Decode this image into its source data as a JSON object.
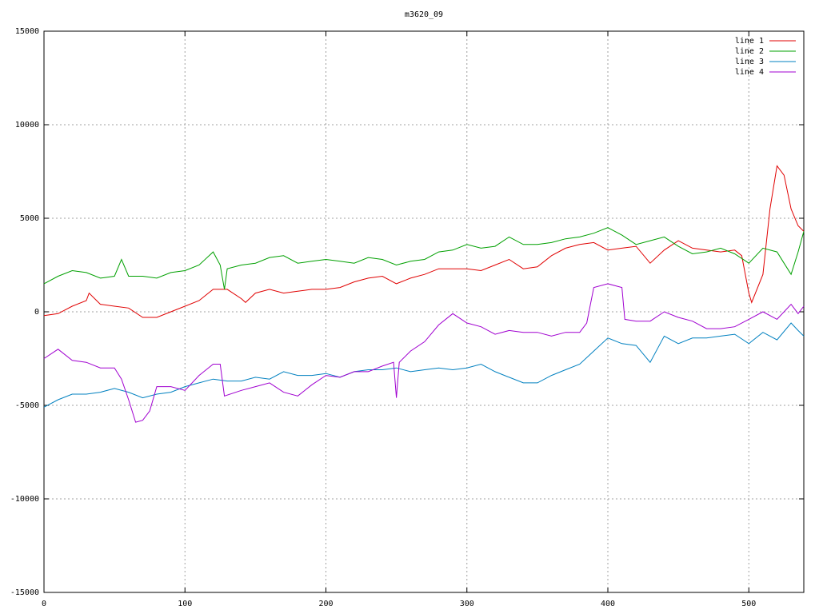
{
  "chart_data": {
    "type": "line",
    "title": "m3620_09",
    "xlim": [
      0,
      539
    ],
    "xticks": [
      0,
      100,
      200,
      300,
      400,
      500
    ],
    "ylim": [
      -15000,
      15000
    ],
    "yticks": [
      -15000,
      -10000,
      -5000,
      0,
      5000,
      10000,
      15000
    ],
    "grid": true,
    "legend": "top-right",
    "series": [
      {
        "name": "line 1",
        "color": "#e00000",
        "x": [
          0,
          10,
          20,
          30,
          32,
          40,
          50,
          60,
          70,
          80,
          90,
          100,
          110,
          120,
          130,
          140,
          143,
          150,
          160,
          170,
          180,
          190,
          200,
          210,
          220,
          230,
          240,
          250,
          260,
          270,
          280,
          290,
          300,
          310,
          320,
          330,
          340,
          350,
          360,
          370,
          380,
          390,
          400,
          410,
          420,
          430,
          440,
          450,
          460,
          470,
          480,
          490,
          495,
          500,
          502,
          510,
          515,
          520,
          525,
          530,
          535,
          539
        ],
        "values": [
          -200,
          -100,
          300,
          600,
          1000,
          400,
          300,
          200,
          -300,
          -300,
          0,
          300,
          600,
          1200,
          1200,
          700,
          500,
          1000,
          1200,
          1000,
          1100,
          1200,
          1200,
          1300,
          1600,
          1800,
          1900,
          1500,
          1800,
          2000,
          2300,
          2300,
          2300,
          2200,
          2500,
          2800,
          2300,
          2400,
          3000,
          3400,
          3600,
          3700,
          3300,
          3400,
          3500,
          2600,
          3300,
          3800,
          3400,
          3300,
          3200,
          3300,
          3000,
          1000,
          500,
          2000,
          5500,
          7800,
          7300,
          5500,
          4600,
          4300
        ]
      },
      {
        "name": "line 2",
        "color": "#00a000",
        "x": [
          0,
          10,
          20,
          30,
          40,
          50,
          55,
          60,
          70,
          80,
          90,
          100,
          110,
          120,
          125,
          128,
          130,
          140,
          150,
          160,
          170,
          180,
          190,
          200,
          210,
          220,
          230,
          240,
          250,
          260,
          270,
          280,
          290,
          300,
          310,
          320,
          330,
          340,
          350,
          360,
          370,
          380,
          390,
          400,
          410,
          420,
          430,
          440,
          450,
          460,
          470,
          480,
          490,
          500,
          510,
          520,
          525,
          530,
          535,
          539
        ],
        "values": [
          1500,
          1900,
          2200,
          2100,
          1800,
          1900,
          2800,
          1900,
          1900,
          1800,
          2100,
          2200,
          2500,
          3200,
          2500,
          1200,
          2300,
          2500,
          2600,
          2900,
          3000,
          2600,
          2700,
          2800,
          2700,
          2600,
          2900,
          2800,
          2500,
          2700,
          2800,
          3200,
          3300,
          3600,
          3400,
          3500,
          4000,
          3600,
          3600,
          3700,
          3900,
          4000,
          4200,
          4500,
          4100,
          3600,
          3800,
          4000,
          3500,
          3100,
          3200,
          3400,
          3100,
          2600,
          3400,
          3200,
          2600,
          2000,
          3200,
          4300
        ]
      },
      {
        "name": "line 3",
        "color": "#0080c0",
        "x": [
          0,
          10,
          20,
          30,
          40,
          50,
          60,
          70,
          80,
          90,
          100,
          110,
          120,
          130,
          140,
          150,
          160,
          170,
          180,
          190,
          200,
          210,
          220,
          230,
          240,
          250,
          260,
          270,
          280,
          290,
          300,
          310,
          320,
          330,
          340,
          350,
          360,
          370,
          380,
          390,
          400,
          410,
          420,
          430,
          435,
          440,
          450,
          460,
          470,
          480,
          490,
          500,
          510,
          520,
          530,
          535,
          539
        ],
        "values": [
          -5100,
          -4700,
          -4400,
          -4400,
          -4300,
          -4100,
          -4300,
          -4600,
          -4400,
          -4300,
          -4000,
          -3800,
          -3600,
          -3700,
          -3700,
          -3500,
          -3600,
          -3200,
          -3400,
          -3400,
          -3300,
          -3500,
          -3200,
          -3100,
          -3100,
          -3000,
          -3200,
          -3100,
          -3000,
          -3100,
          -3000,
          -2800,
          -3200,
          -3500,
          -3800,
          -3800,
          -3400,
          -3100,
          -2800,
          -2100,
          -1400,
          -1700,
          -1800,
          -2700,
          -2000,
          -1300,
          -1700,
          -1400,
          -1400,
          -1300,
          -1200,
          -1700,
          -1100,
          -1500,
          -600,
          -1000,
          -1300
        ]
      },
      {
        "name": "line 4",
        "color": "#a000d0",
        "x": [
          0,
          10,
          20,
          30,
          40,
          50,
          55,
          60,
          65,
          70,
          75,
          80,
          90,
          100,
          110,
          120,
          125,
          128,
          140,
          150,
          160,
          170,
          180,
          190,
          200,
          210,
          220,
          230,
          240,
          248,
          250,
          252,
          260,
          270,
          280,
          290,
          300,
          310,
          320,
          330,
          340,
          350,
          360,
          370,
          380,
          385,
          390,
          400,
          410,
          412,
          420,
          430,
          440,
          450,
          460,
          470,
          480,
          490,
          500,
          510,
          520,
          530,
          535,
          539
        ],
        "values": [
          -2500,
          -2000,
          -2600,
          -2700,
          -3000,
          -3000,
          -3600,
          -4700,
          -5900,
          -5800,
          -5300,
          -4000,
          -4000,
          -4200,
          -3400,
          -2800,
          -2800,
          -4500,
          -4200,
          -4000,
          -3800,
          -4300,
          -4500,
          -3900,
          -3400,
          -3500,
          -3200,
          -3200,
          -2900,
          -2700,
          -4600,
          -2700,
          -2100,
          -1600,
          -700,
          -100,
          -600,
          -800,
          -1200,
          -1000,
          -1100,
          -1100,
          -1300,
          -1100,
          -1100,
          -600,
          1300,
          1500,
          1300,
          -400,
          -500,
          -500,
          0,
          -300,
          -500,
          -900,
          -900,
          -800,
          -400,
          0,
          -400,
          400,
          -100,
          300
        ]
      }
    ]
  }
}
